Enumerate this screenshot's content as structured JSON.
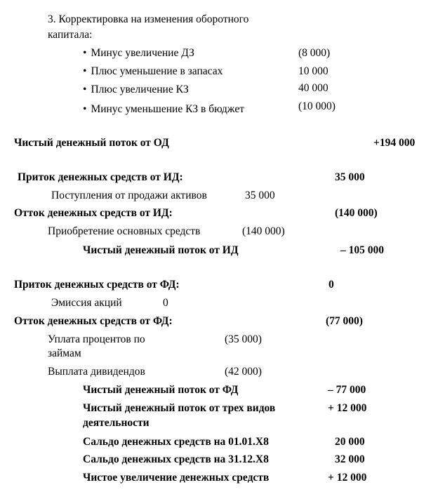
{
  "adjustment": {
    "title_line1": "3. Корректировка на изменения оборотного",
    "title_line2": "капитала:",
    "items": [
      {
        "label": "Минус увеличение ДЗ",
        "value": "(8 000)"
      },
      {
        "label": "Плюс уменьшение в запасах",
        "value": "10 000"
      },
      {
        "label": "Плюс увеличение КЗ",
        "value": "40 000"
      },
      {
        "label": "Минус уменьшение КЗ в бюджет",
        "value": "(10 000)"
      }
    ]
  },
  "net_od": {
    "label": "Чистый денежный поток от ОД",
    "value": "+194 000"
  },
  "investing": {
    "inflow": {
      "label": "Приток денежных средств от ИД:",
      "value": "35 000"
    },
    "inflow_item": {
      "label": "Поступления от продажи активов",
      "value": "35 000"
    },
    "outflow": {
      "label": "Отток денежных средств от ИД:",
      "value": "(140 000)"
    },
    "outflow_item": {
      "label": "Приобретение основных средств",
      "value": "(140 000)"
    },
    "net": {
      "label": "Чистый денежный поток от ИД",
      "value": "– 105 000"
    }
  },
  "financing": {
    "inflow": {
      "label": "Приток денежных средств от ФД:",
      "value": "0"
    },
    "inflow_item": {
      "label": "Эмиссия акций",
      "value": "0"
    },
    "outflow": {
      "label": "Отток денежных средств от ФД:",
      "value": "(77 000)"
    },
    "interest": {
      "label_line1": "Уплата процентов по",
      "label_line2": "займам",
      "value": "(35 000)"
    },
    "dividends": {
      "label": "Выплата дивидендов",
      "value": "(42 000)"
    },
    "net": {
      "label": "Чистый денежный поток от ФД",
      "value": "– 77 000"
    }
  },
  "summary": {
    "total_line1": "Чистый денежный поток от трех видов",
    "total_line2": "деятельности",
    "total_value": "+ 12 000",
    "opening": {
      "label": "Сальдо денежных средств на 01.01.Х8",
      "value": "20 000"
    },
    "closing": {
      "label": "Сальдо денежных средств на 31.12.Х8",
      "value": "32 000"
    },
    "increase": {
      "label": "Чистое увеличение денежных средств",
      "value": "+ 12 000"
    }
  }
}
